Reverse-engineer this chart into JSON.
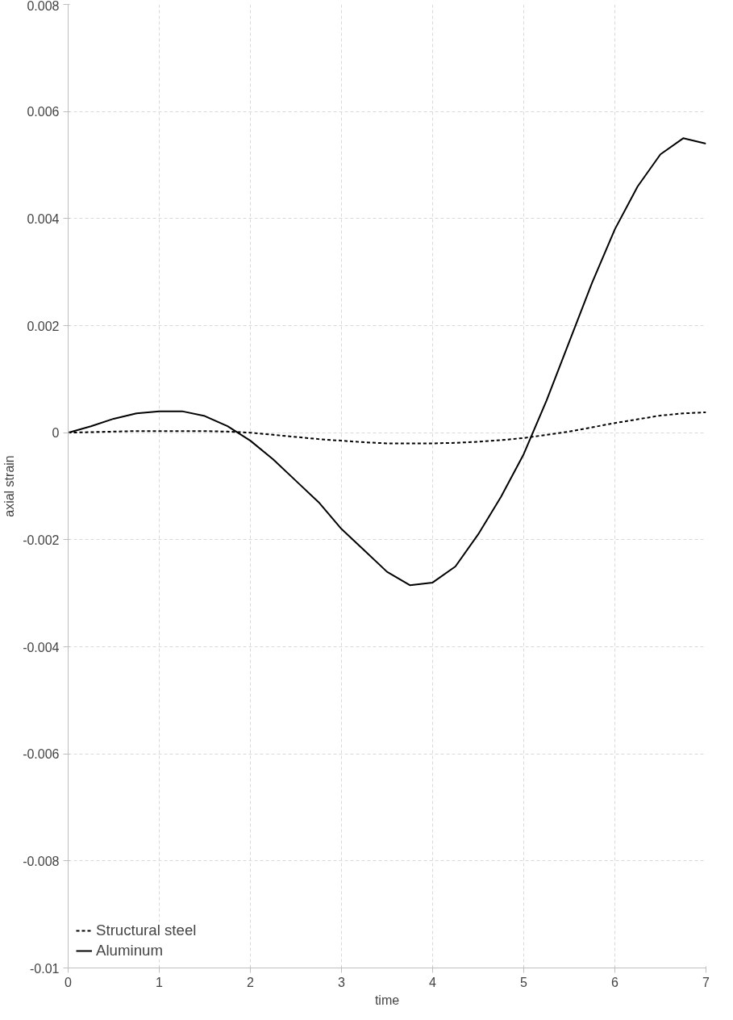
{
  "chart_data": {
    "type": "line",
    "xlabel": "time",
    "ylabel": "axial strain",
    "xlim": [
      0,
      7
    ],
    "xticks": [
      0,
      1,
      2,
      3,
      4,
      5,
      6,
      7
    ],
    "ylim": [
      -0.01,
      0.008
    ],
    "yticks": [
      -0.01,
      -0.008,
      -0.006,
      -0.004,
      -0.002,
      0,
      0.002,
      0.004,
      0.006,
      0.008
    ],
    "grid": true,
    "legend": "bottom left",
    "marker": "none",
    "x": [
      0,
      0.25,
      0.5,
      0.75,
      1.0,
      1.25,
      1.5,
      1.75,
      2.0,
      2.25,
      2.5,
      2.75,
      3.0,
      3.25,
      3.5,
      3.75,
      4.0,
      4.25,
      4.5,
      4.75,
      5.0,
      5.25,
      5.5,
      5.75,
      6.0,
      6.25,
      6.5,
      6.75,
      7.0
    ],
    "series": [
      {
        "name": "Structural steel",
        "color": "#000000",
        "line_style": "dashed",
        "values": [
          0,
          1e-05,
          2e-05,
          3e-05,
          3e-05,
          3e-05,
          3e-05,
          2e-05,
          0,
          -4e-05,
          -8e-05,
          -0.00012,
          -0.00015,
          -0.00018,
          -0.0002,
          -0.0002,
          -0.0002,
          -0.00019,
          -0.00017,
          -0.00014,
          -0.0001,
          -4e-05,
          2e-05,
          0.0001,
          0.00018,
          0.00025,
          0.00032,
          0.00036,
          0.00038
        ]
      },
      {
        "name": "Aluminum",
        "color": "#000000",
        "line_style": "solid",
        "values": [
          0,
          0.00012,
          0.00026,
          0.00036,
          0.0004,
          0.0004,
          0.00031,
          0.00012,
          -0.00015,
          -0.0005,
          -0.0009,
          -0.0013,
          -0.0018,
          -0.0022,
          -0.0026,
          -0.00285,
          -0.0028,
          -0.0025,
          -0.0019,
          -0.0012,
          -0.0004,
          0.0006,
          0.0017,
          0.0028,
          0.0038,
          0.0046,
          0.0052,
          0.0055,
          0.0054
        ]
      }
    ]
  }
}
